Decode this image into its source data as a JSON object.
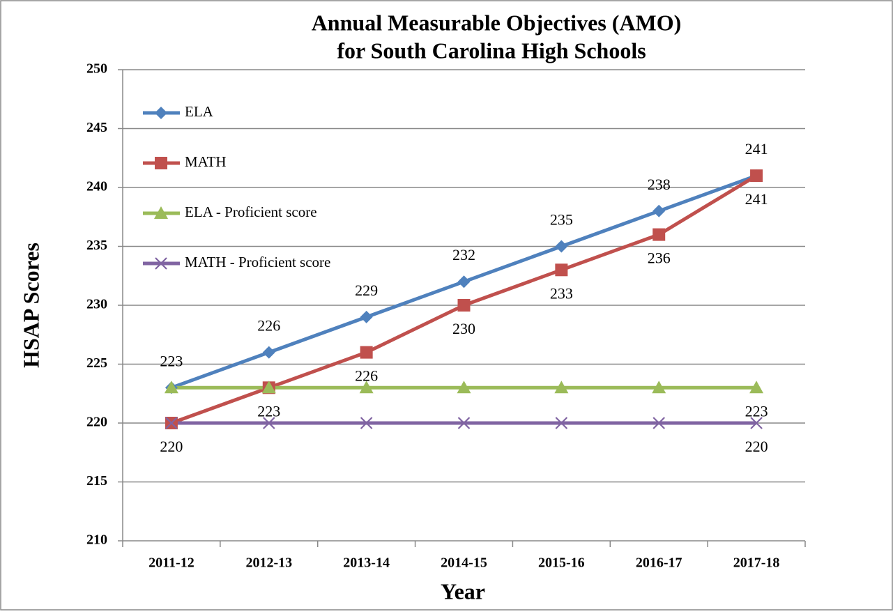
{
  "chart_data": {
    "type": "line",
    "title": [
      "Annual Measurable  Objectives (AMO)",
      "for South Carolina High Schools"
    ],
    "x_label": "Year",
    "y_label": "HSAP  Scores",
    "categories": [
      "2011-12",
      "2012-13",
      "2013-14",
      "2014-15",
      "2015-16",
      "2016-17",
      "2017-18"
    ],
    "ylim": [
      210,
      250
    ],
    "yticks": [
      210,
      215,
      220,
      225,
      230,
      235,
      240,
      245,
      250
    ],
    "grid": true,
    "legend": "upper left",
    "series": [
      {
        "name": "ELA",
        "color": "#4f81bd",
        "marker": "diamond",
        "label_position": "above",
        "labeled_points": "all",
        "values": [
          223,
          226,
          229,
          232,
          235,
          238,
          241
        ]
      },
      {
        "name": "MATH",
        "color": "#c0504d",
        "marker": "square",
        "label_position": "below",
        "labeled_points": "all",
        "values": [
          220,
          223,
          226,
          230,
          233,
          236,
          241
        ]
      },
      {
        "name": "ELA - Proficient score",
        "color": "#9bbb59",
        "marker": "triangle",
        "label_position": "below",
        "labeled_points": "last",
        "values": [
          223,
          223,
          223,
          223,
          223,
          223,
          223
        ]
      },
      {
        "name": "MATH - Proficient score",
        "color": "#8064a2",
        "marker": "x",
        "label_position": "below",
        "labeled_points": "last",
        "values": [
          220,
          220,
          220,
          220,
          220,
          220,
          220
        ]
      }
    ]
  }
}
